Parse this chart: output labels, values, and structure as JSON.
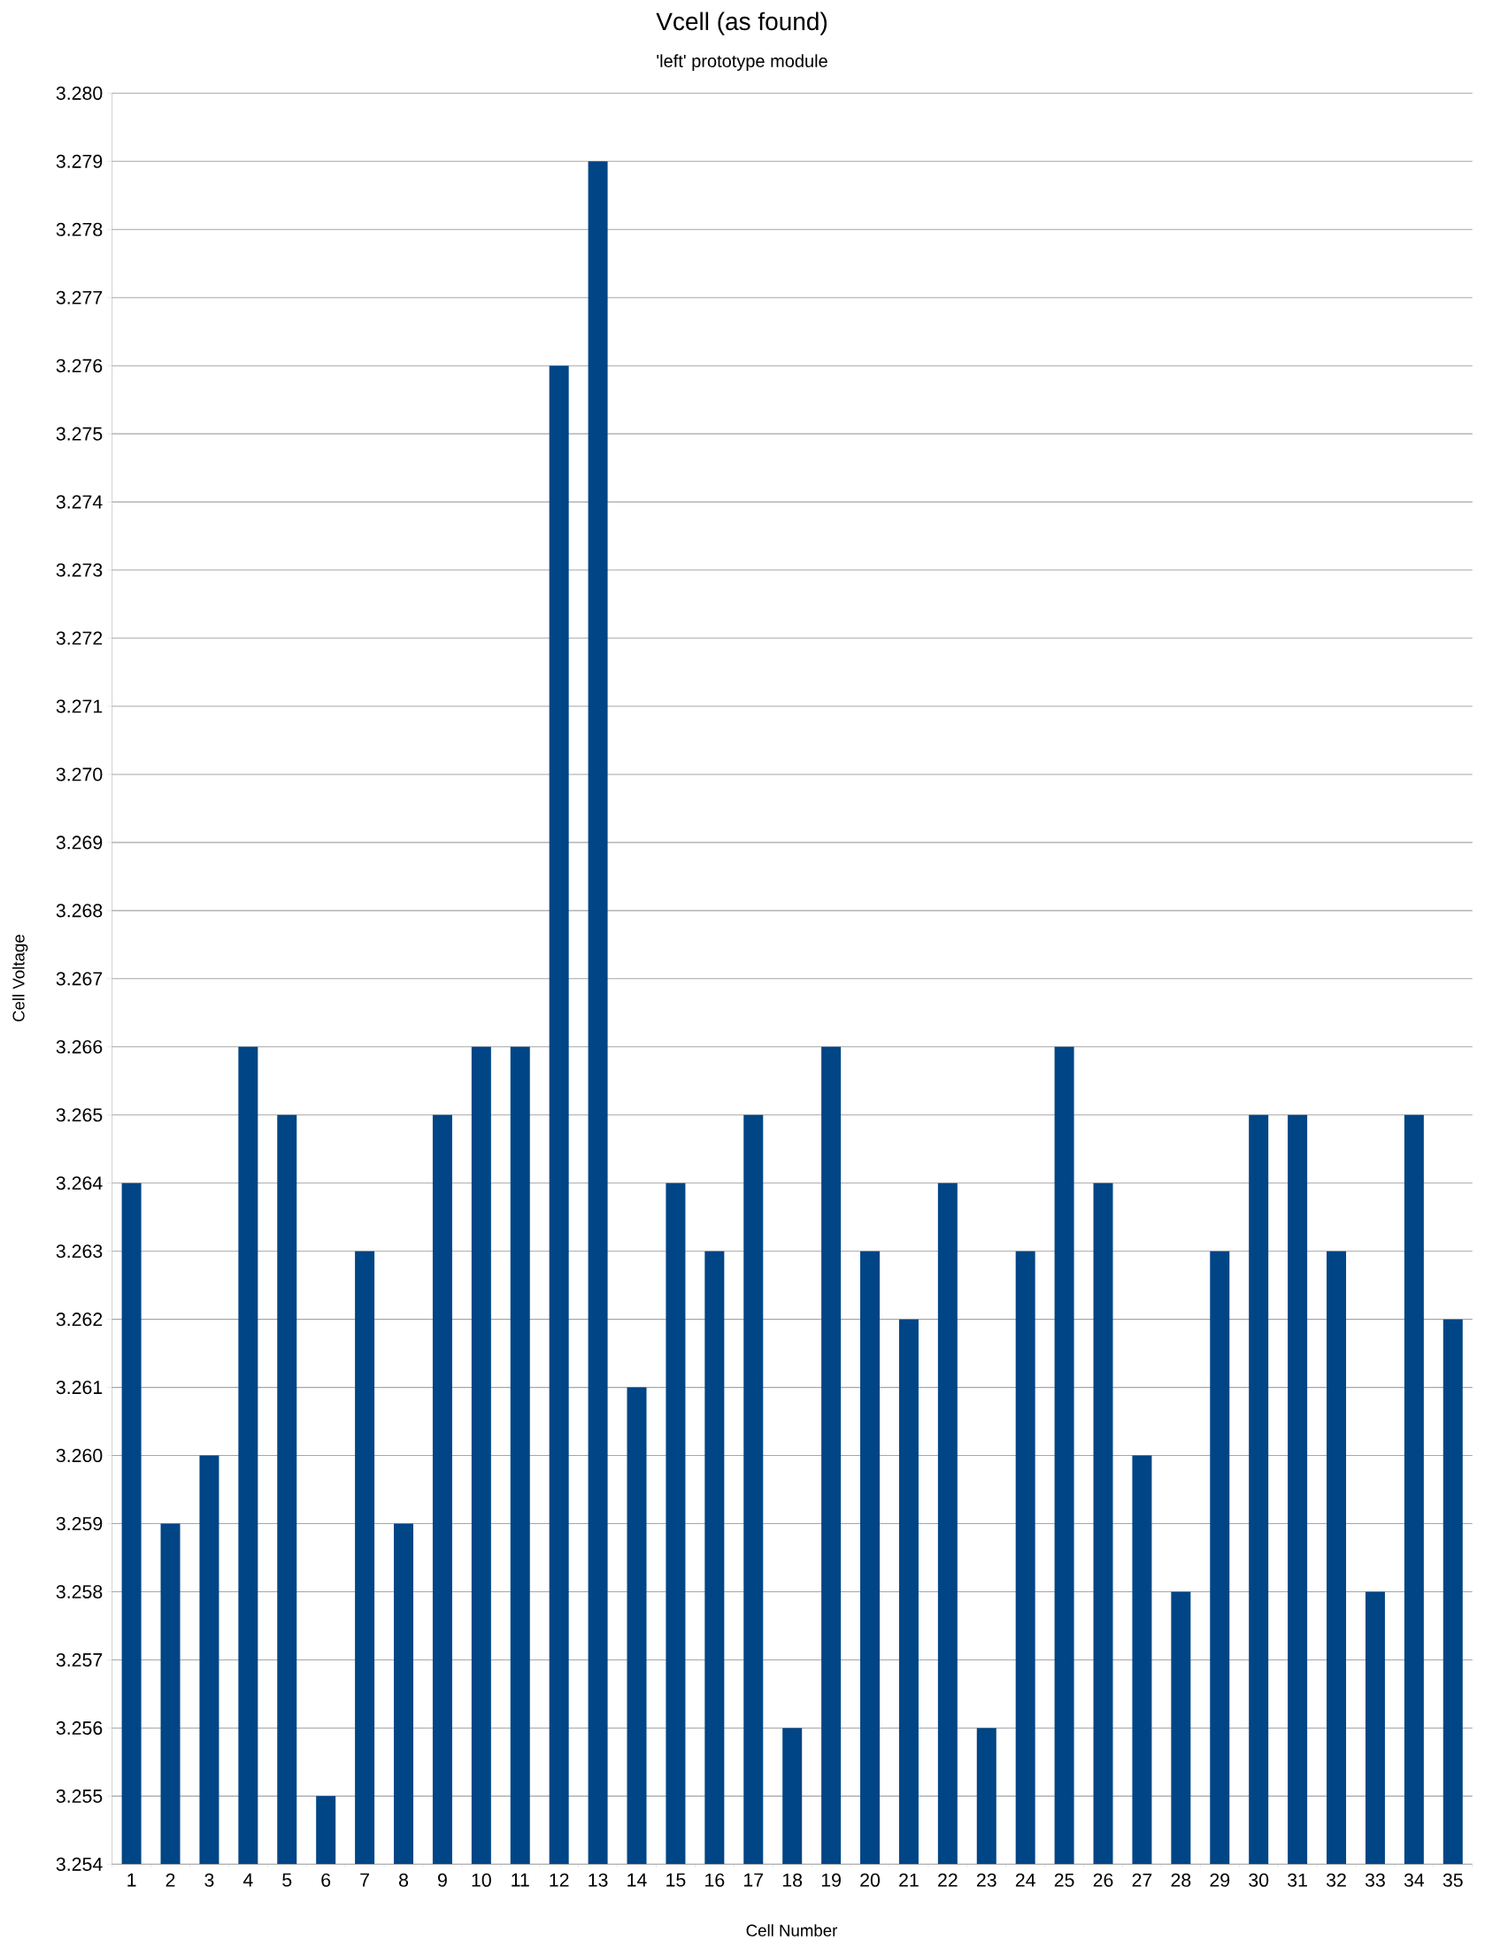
{
  "chart_data": {
    "type": "bar",
    "title": "Vcell (as found)",
    "subtitle": "'left' prototype module",
    "xlabel": "Cell Number",
    "ylabel": "Cell Voltage",
    "categories": [
      "1",
      "2",
      "3",
      "4",
      "5",
      "6",
      "7",
      "8",
      "9",
      "10",
      "11",
      "12",
      "13",
      "14",
      "15",
      "16",
      "17",
      "18",
      "19",
      "20",
      "21",
      "22",
      "23",
      "24",
      "25",
      "26",
      "27",
      "28",
      "29",
      "30",
      "31",
      "32",
      "33",
      "34",
      "35"
    ],
    "values": [
      3.264,
      3.259,
      3.26,
      3.266,
      3.265,
      3.255,
      3.263,
      3.259,
      3.265,
      3.266,
      3.266,
      3.276,
      3.279,
      3.261,
      3.264,
      3.263,
      3.265,
      3.256,
      3.266,
      3.263,
      3.262,
      3.264,
      3.256,
      3.263,
      3.266,
      3.264,
      3.26,
      3.258,
      3.263,
      3.265,
      3.265,
      3.263,
      3.258,
      3.265,
      3.262
    ],
    "color": "#004586",
    "ylim": [
      3.254,
      3.28
    ],
    "yticks": [
      {
        "value": 3.254,
        "label": "3.254"
      },
      {
        "value": 3.255,
        "label": "3.255"
      },
      {
        "value": 3.256,
        "label": "3.256"
      },
      {
        "value": 3.257,
        "label": "3.257"
      },
      {
        "value": 3.258,
        "label": "3.258"
      },
      {
        "value": 3.259,
        "label": "3.259"
      },
      {
        "value": 3.26,
        "label": "3.260"
      },
      {
        "value": 3.261,
        "label": "3.261"
      },
      {
        "value": 3.262,
        "label": "3.262"
      },
      {
        "value": 3.263,
        "label": "3.263"
      },
      {
        "value": 3.264,
        "label": "3.264"
      },
      {
        "value": 3.265,
        "label": "3.265"
      },
      {
        "value": 3.266,
        "label": "3.266"
      },
      {
        "value": 3.267,
        "label": "3.267"
      },
      {
        "value": 3.268,
        "label": "3.268"
      },
      {
        "value": 3.269,
        "label": "3.269"
      },
      {
        "value": 3.27,
        "label": "3.270"
      },
      {
        "value": 3.271,
        "label": "3.271"
      },
      {
        "value": 3.272,
        "label": "3.272"
      },
      {
        "value": 3.273,
        "label": "3.273"
      },
      {
        "value": 3.274,
        "label": "3.274"
      },
      {
        "value": 3.275,
        "label": "3.275"
      },
      {
        "value": 3.276,
        "label": "3.276"
      },
      {
        "value": 3.277,
        "label": "3.277"
      },
      {
        "value": 3.278,
        "label": "3.278"
      },
      {
        "value": 3.279,
        "label": "3.279"
      },
      {
        "value": 3.28,
        "label": "3.280"
      }
    ],
    "grid": "y"
  }
}
